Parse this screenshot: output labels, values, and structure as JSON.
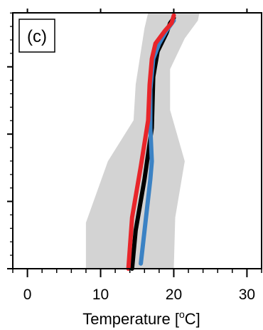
{
  "chart_data": {
    "type": "line",
    "panel_label": "(c)",
    "xlabel_prefix": "Temperature [",
    "xlabel_sup": "o",
    "xlabel_suffix": "C]",
    "xlim": [
      -2,
      32
    ],
    "ylim": [
      0,
      1
    ],
    "x_ticks": [
      0,
      10,
      20,
      30
    ],
    "x_tick_labels": [
      "0",
      "10",
      "20",
      "30"
    ],
    "y_ticks_major": [
      0.0,
      0.263,
      0.526,
      0.789
    ],
    "grid": false,
    "legend": "none",
    "colors": {
      "band": "#d3d3d3",
      "black": "#000000",
      "red": "#e8252a",
      "blue": "#3b82c4"
    },
    "band": {
      "left": [
        [
          8.0,
          0.0
        ],
        [
          8.0,
          0.18
        ],
        [
          11.0,
          0.42
        ],
        [
          14.5,
          0.58
        ],
        [
          14.8,
          0.72
        ],
        [
          16.0,
          0.94
        ],
        [
          16.5,
          1.0
        ]
      ],
      "right": [
        [
          20.0,
          0.0
        ],
        [
          20.2,
          0.2
        ],
        [
          21.5,
          0.42
        ],
        [
          19.5,
          0.62
        ],
        [
          19.5,
          0.78
        ],
        [
          21.5,
          0.9
        ],
        [
          23.3,
          0.97
        ],
        [
          23.5,
          1.0
        ]
      ]
    },
    "series": [
      {
        "color": "black",
        "points": [
          [
            14.3,
            0.0
          ],
          [
            14.8,
            0.15
          ],
          [
            16.0,
            0.35
          ],
          [
            17.0,
            0.55
          ],
          [
            17.2,
            0.75
          ],
          [
            17.8,
            0.85
          ],
          [
            19.0,
            0.92
          ],
          [
            19.5,
            0.96
          ],
          [
            20.0,
            0.98
          ]
        ]
      },
      {
        "color": "blue",
        "points": [
          [
            15.5,
            0.02
          ],
          [
            16.2,
            0.2
          ],
          [
            16.8,
            0.35
          ],
          [
            17.0,
            0.42
          ],
          [
            16.8,
            0.55
          ],
          [
            16.8,
            0.7
          ],
          [
            17.2,
            0.82
          ],
          [
            18.0,
            0.88
          ],
          [
            19.0,
            0.93
          ],
          [
            20.0,
            0.97
          ]
        ]
      },
      {
        "color": "red",
        "points": [
          [
            13.8,
            0.0
          ],
          [
            14.3,
            0.2
          ],
          [
            15.5,
            0.4
          ],
          [
            16.5,
            0.58
          ],
          [
            16.7,
            0.72
          ],
          [
            17.0,
            0.82
          ],
          [
            17.5,
            0.88
          ],
          [
            18.8,
            0.93
          ],
          [
            19.7,
            0.96
          ],
          [
            20.0,
            0.99
          ]
        ]
      }
    ]
  }
}
